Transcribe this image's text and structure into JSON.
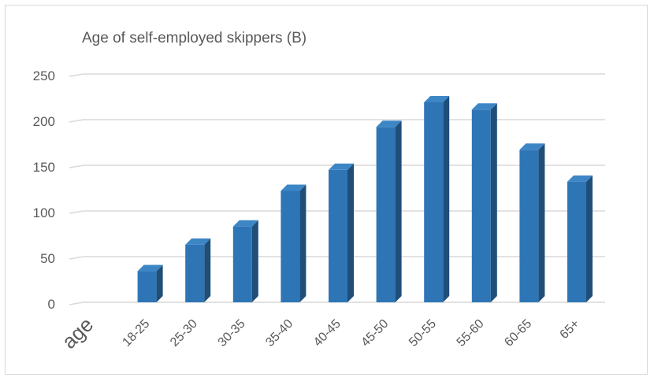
{
  "chart_data": {
    "type": "bar",
    "title": "Age of self-employed skippers (B)",
    "xlabel": "age",
    "ylabel": "",
    "ylim": [
      0,
      250
    ],
    "yticks": [
      0,
      50,
      100,
      150,
      200,
      250
    ],
    "grid": true,
    "style": "3d-columns",
    "colors": {
      "bar_front": "#2e75b6",
      "bar_side": "#1f4e79",
      "bar_top": "#3d86c6",
      "grid": "#d9d9d9",
      "text": "#595959"
    },
    "categories": [
      "18-25",
      "25-30",
      "30-35",
      "35-40",
      "40-45",
      "45-50",
      "50-55",
      "55-60",
      "60-65",
      "65+"
    ],
    "values": [
      34,
      63,
      83,
      122,
      145,
      192,
      219,
      211,
      167,
      132
    ]
  }
}
